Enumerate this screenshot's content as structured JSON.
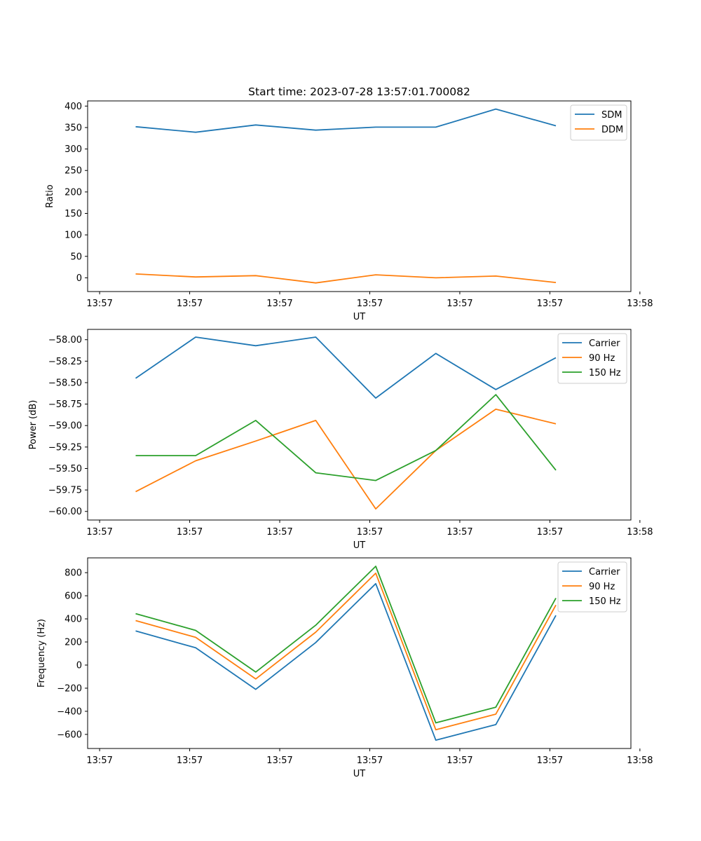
{
  "figure": {
    "title": "Start time: 2023-07-28 13:57:01.700082"
  },
  "chart_data": [
    {
      "type": "line",
      "title": "Start time: 2023-07-28 13:57:01.700082",
      "xlabel": "UT",
      "ylabel": "Ratio",
      "x": [
        1,
        2,
        3,
        4,
        5,
        6,
        7,
        8
      ],
      "xlim": [
        0.2,
        9.25
      ],
      "ylim": [
        -32,
        412
      ],
      "xticks": [
        0.4,
        1.9,
        3.4,
        4.9,
        6.4,
        7.9,
        9.4
      ],
      "xtick_labels": [
        "13:57",
        "13:57",
        "13:57",
        "13:57",
        "13:57",
        "13:57",
        "13:58"
      ],
      "yticks": [
        0,
        50,
        100,
        150,
        200,
        250,
        300,
        350,
        400
      ],
      "ytick_labels": [
        "0",
        "50",
        "100",
        "150",
        "200",
        "250",
        "300",
        "350",
        "400"
      ],
      "legend": "top-right",
      "series": [
        {
          "name": "SDM",
          "color": "#1f77b4",
          "values": [
            352,
            339,
            356,
            344,
            351,
            351,
            393,
            354
          ]
        },
        {
          "name": "DDM",
          "color": "#ff7f0e",
          "values": [
            9,
            2,
            5,
            -12,
            7,
            0,
            4,
            -11
          ]
        }
      ]
    },
    {
      "type": "line",
      "title": "",
      "xlabel": "UT",
      "ylabel": "Power (dB)",
      "x": [
        1,
        2,
        3,
        4,
        5,
        6,
        7,
        8
      ],
      "xlim": [
        0.2,
        9.25
      ],
      "ylim": [
        -60.1,
        -57.88
      ],
      "xticks": [
        0.4,
        1.9,
        3.4,
        4.9,
        6.4,
        7.9,
        9.4
      ],
      "xtick_labels": [
        "13:57",
        "13:57",
        "13:57",
        "13:57",
        "13:57",
        "13:57",
        "13:58"
      ],
      "yticks": [
        -60.0,
        -59.75,
        -59.5,
        -59.25,
        -59.0,
        -58.75,
        -58.5,
        -58.25,
        -58.0
      ],
      "ytick_labels": [
        "−60.00",
        "−59.75",
        "−59.50",
        "−59.25",
        "−59.00",
        "−58.75",
        "−58.50",
        "−58.25",
        "−58.00"
      ],
      "legend": "top-right",
      "series": [
        {
          "name": "Carrier",
          "color": "#1f77b4",
          "values": [
            -58.45,
            -57.97,
            -58.07,
            -57.97,
            -58.68,
            -58.16,
            -58.58,
            -58.21
          ]
        },
        {
          "name": "90 Hz",
          "color": "#ff7f0e",
          "values": [
            -59.77,
            -59.41,
            -59.18,
            -58.94,
            -59.97,
            -59.29,
            -58.81,
            -58.98
          ]
        },
        {
          "name": "150 Hz",
          "color": "#2ca02c",
          "values": [
            -59.35,
            -59.35,
            -58.94,
            -59.55,
            -59.64,
            -59.29,
            -58.64,
            -59.52
          ]
        }
      ]
    },
    {
      "type": "line",
      "title": "",
      "xlabel": "UT",
      "ylabel": "Frequency (Hz)",
      "x": [
        1,
        2,
        3,
        4,
        5,
        6,
        7,
        8
      ],
      "xlim": [
        0.2,
        9.25
      ],
      "ylim": [
        -722,
        928
      ],
      "xticks": [
        0.4,
        1.9,
        3.4,
        4.9,
        6.4,
        7.9,
        9.4
      ],
      "xtick_labels": [
        "13:57",
        "13:57",
        "13:57",
        "13:57",
        "13:57",
        "13:57",
        "13:58"
      ],
      "yticks": [
        -600,
        -400,
        -200,
        0,
        200,
        400,
        600,
        800
      ],
      "ytick_labels": [
        "−600",
        "−400",
        "−200",
        "0",
        "200",
        "400",
        "600",
        "800"
      ],
      "legend": "top-right",
      "series": [
        {
          "name": "Carrier",
          "color": "#1f77b4",
          "values": [
            295,
            150,
            -210,
            195,
            705,
            -650,
            -515,
            430
          ]
        },
        {
          "name": "90 Hz",
          "color": "#ff7f0e",
          "values": [
            385,
            240,
            -120,
            285,
            795,
            -560,
            -425,
            520
          ]
        },
        {
          "name": "150 Hz",
          "color": "#2ca02c",
          "values": [
            445,
            300,
            -60,
            345,
            855,
            -500,
            -365,
            580
          ]
        }
      ]
    }
  ]
}
